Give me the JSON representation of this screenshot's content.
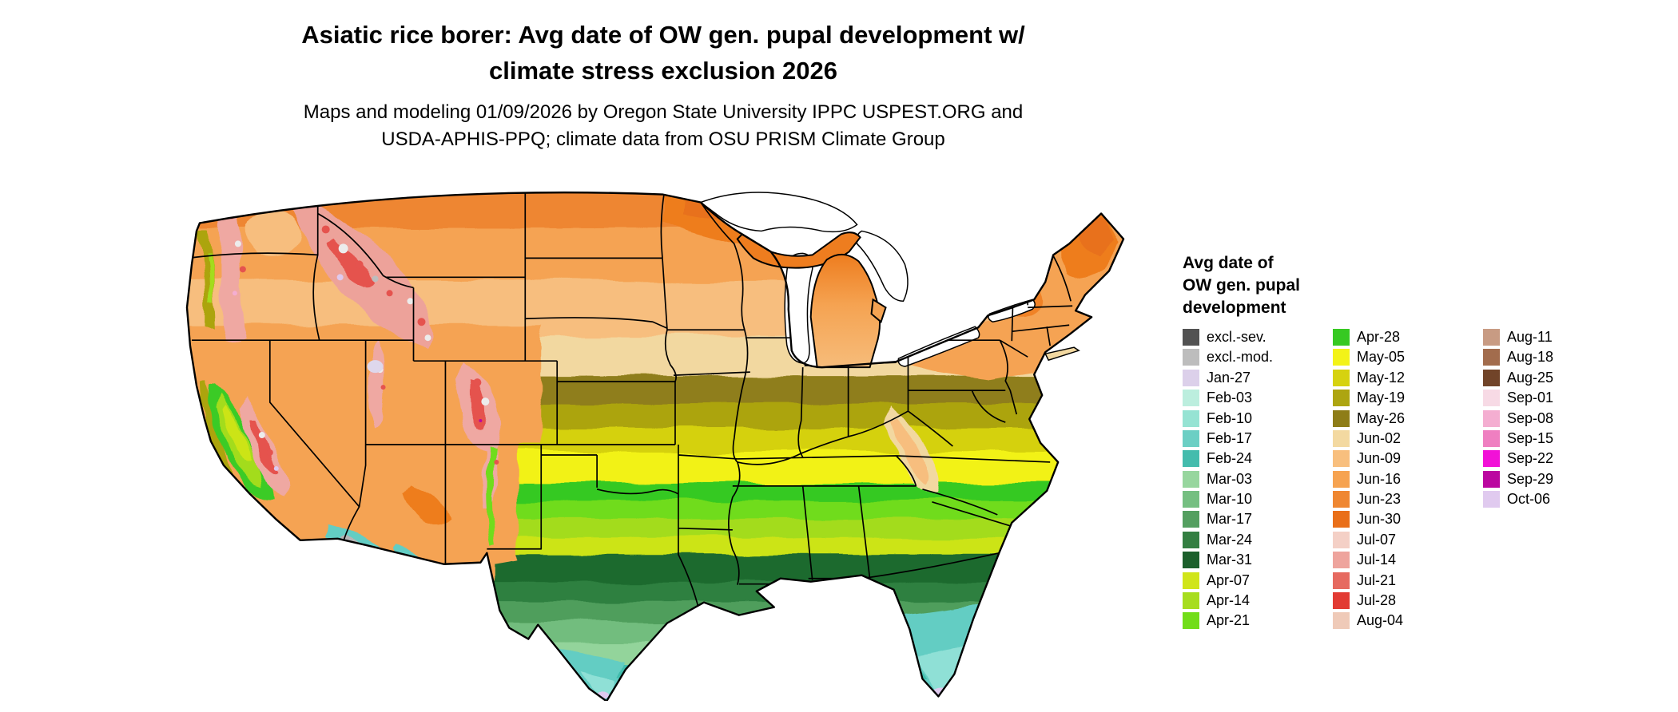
{
  "title": {
    "lines": [
      "Asiatic rice borer: Avg date of OW gen. pupal development w/",
      "climate stress exclusion 2026"
    ]
  },
  "subtitle": {
    "lines": [
      "Maps and modeling 01/09/2026 by Oregon State University IPPC USPEST.ORG and",
      "USDA-APHIS-PPQ; climate data from OSU PRISM Climate Group"
    ]
  },
  "map": {
    "region": "Continental United States choropleth of average date of overwintering generation pupal development"
  },
  "legend": {
    "title_lines": [
      "Avg date of",
      "OW gen. pupal",
      "development"
    ],
    "columns": [
      {
        "entries": [
          {
            "label": "excl.-sev.",
            "color": "#525252"
          },
          {
            "label": "excl.-mod.",
            "color": "#bdbdbd"
          },
          {
            "label": "Jan-27",
            "color": "#dcd0ea"
          },
          {
            "label": "Feb-03",
            "color": "#bceede"
          },
          {
            "label": "Feb-10",
            "color": "#96e3d3"
          },
          {
            "label": "Feb-17",
            "color": "#6ccfc4"
          },
          {
            "label": "Feb-24",
            "color": "#44bcad"
          },
          {
            "label": "Mar-03",
            "color": "#97d69e"
          },
          {
            "label": "Mar-10",
            "color": "#75bf81"
          },
          {
            "label": "Mar-17",
            "color": "#549f60"
          },
          {
            "label": "Mar-24",
            "color": "#347f42"
          },
          {
            "label": "Mar-31",
            "color": "#1c602c"
          },
          {
            "label": "Apr-07",
            "color": "#d0e51a"
          },
          {
            "label": "Apr-14",
            "color": "#a7dd1e"
          },
          {
            "label": "Apr-21",
            "color": "#72dd19"
          }
        ]
      },
      {
        "entries": [
          {
            "label": "Apr-28",
            "color": "#37c922"
          },
          {
            "label": "May-05",
            "color": "#f3f318"
          },
          {
            "label": "May-12",
            "color": "#d6d20f"
          },
          {
            "label": "May-19",
            "color": "#ada511"
          },
          {
            "label": "May-26",
            "color": "#8e7d18"
          },
          {
            "label": "Jun-02",
            "color": "#f3d9a1"
          },
          {
            "label": "Jun-09",
            "color": "#f8bf7e"
          },
          {
            "label": "Jun-16",
            "color": "#f6a351"
          },
          {
            "label": "Jun-23",
            "color": "#ef8732"
          },
          {
            "label": "Jun-30",
            "color": "#e96f19"
          },
          {
            "label": "Jul-07",
            "color": "#f4d0c6"
          },
          {
            "label": "Jul-14",
            "color": "#eea49d"
          },
          {
            "label": "Jul-21",
            "color": "#e66a60"
          },
          {
            "label": "Jul-28",
            "color": "#e23b33"
          },
          {
            "label": "Aug-04",
            "color": "#efcab8"
          }
        ]
      },
      {
        "entries": [
          {
            "label": "Aug-11",
            "color": "#c89b83"
          },
          {
            "label": "Aug-18",
            "color": "#a26c4d"
          },
          {
            "label": "Aug-25",
            "color": "#714429"
          },
          {
            "label": "Sep-01",
            "color": "#f7dae5"
          },
          {
            "label": "Sep-08",
            "color": "#f4aed1"
          },
          {
            "label": "Sep-15",
            "color": "#ef7fc1"
          },
          {
            "label": "Sep-22",
            "color": "#f211d7"
          },
          {
            "label": "Sep-29",
            "color": "#bb07a0"
          },
          {
            "label": "Oct-06",
            "color": "#e0caef"
          }
        ]
      }
    ]
  }
}
